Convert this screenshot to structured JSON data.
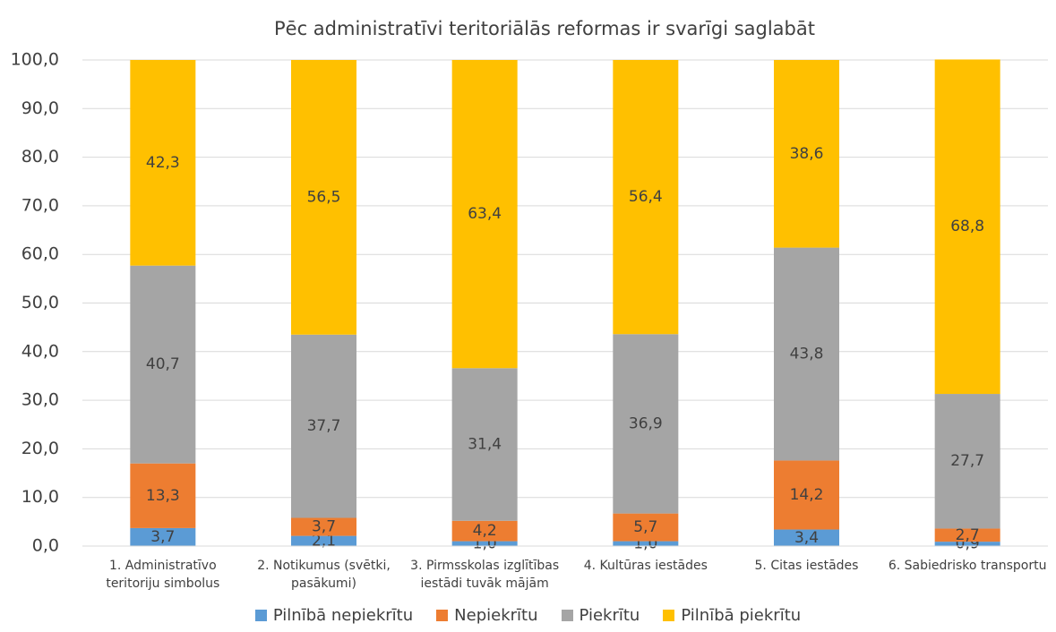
{
  "chart_data": {
    "type": "stacked_bar",
    "title": "Pēc administratīvi teritoriālās reformas ir svarīgi saglabāt",
    "categories": [
      "1. Administratīvo teritoriju simbolus",
      "2. Notikumus (svētki, pasākumi)",
      "3. Pirmsskolas izglītības iestādi tuvāk mājām",
      "4. Kultūras iestādes",
      "5. Citas iestādes",
      "6. Sabiedrisko transportu"
    ],
    "series": [
      {
        "name": "Pilnībā nepiekrītu",
        "color": "#5b9bd5",
        "values": [
          3.7,
          2.1,
          1.0,
          1.0,
          3.4,
          0.9
        ],
        "value_labels": [
          "3,7",
          "2,1",
          "1,0",
          "1,0",
          "3,4",
          "0,9"
        ]
      },
      {
        "name": "Nepiekrītu",
        "color": "#ed7d31",
        "values": [
          13.3,
          3.7,
          4.2,
          5.7,
          14.2,
          2.7
        ],
        "value_labels": [
          "13,3",
          "3,7",
          "4,2",
          "5,7",
          "14,2",
          "2,7"
        ]
      },
      {
        "name": "Piekrītu",
        "color": "#a5a5a5",
        "values": [
          40.7,
          37.7,
          31.4,
          36.9,
          43.8,
          27.7
        ],
        "value_labels": [
          "40,7",
          "37,7",
          "31,4",
          "36,9",
          "43,8",
          "27,7"
        ]
      },
      {
        "name": "Pilnībā piekrītu",
        "color": "#ffc000",
        "values": [
          42.3,
          56.5,
          63.4,
          56.4,
          38.6,
          68.8
        ],
        "value_labels": [
          "42,3",
          "56,5",
          "63,4",
          "56,4",
          "38,6",
          "68,8"
        ]
      }
    ],
    "ylim": [
      0,
      100
    ],
    "yticks": [
      {
        "value": 0,
        "label": "0,0"
      },
      {
        "value": 10,
        "label": "10,0"
      },
      {
        "value": 20,
        "label": "20,0"
      },
      {
        "value": 30,
        "label": "30,0"
      },
      {
        "value": 40,
        "label": "40,0"
      },
      {
        "value": 50,
        "label": "50,0"
      },
      {
        "value": 60,
        "label": "60,0"
      },
      {
        "value": 70,
        "label": "70,0"
      },
      {
        "value": 80,
        "label": "80,0"
      },
      {
        "value": 90,
        "label": "90,0"
      },
      {
        "value": 100,
        "label": "100,0"
      }
    ],
    "grid": true,
    "legend": "bottom"
  }
}
